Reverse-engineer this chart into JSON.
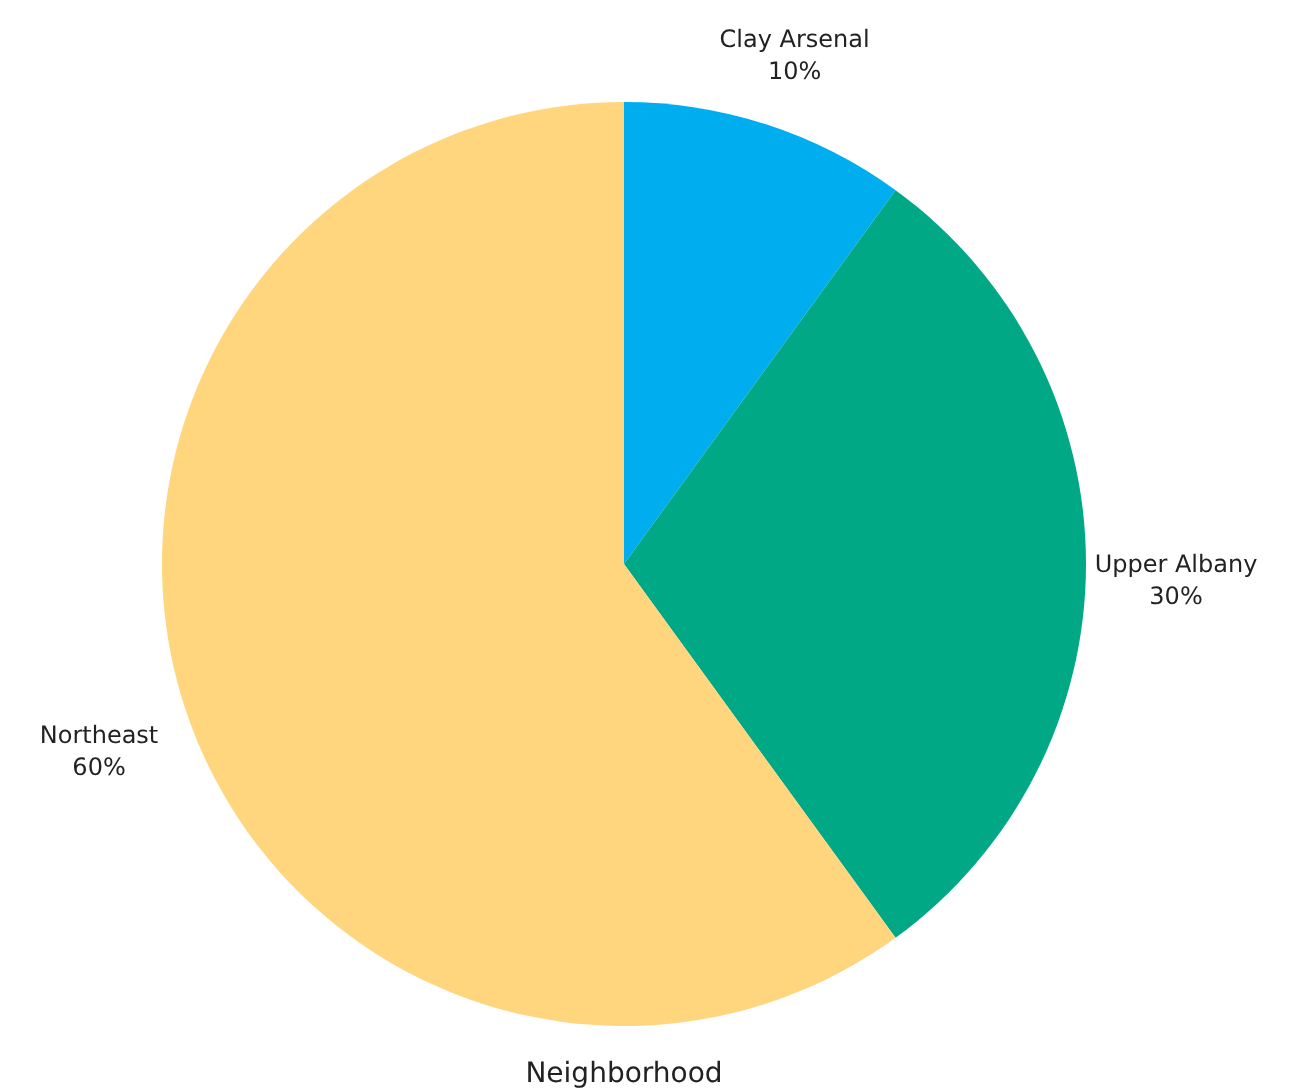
{
  "chart_data": {
    "type": "pie",
    "title": "Neighborhood",
    "categories": [
      "Clay Arsenal",
      "Upper Albany",
      "Northeast"
    ],
    "values": [
      10,
      30,
      60
    ],
    "value_labels": [
      "10%",
      "30%",
      "60%"
    ],
    "colors": [
      "#00aeef",
      "#00a886",
      "#ffd57e"
    ]
  }
}
